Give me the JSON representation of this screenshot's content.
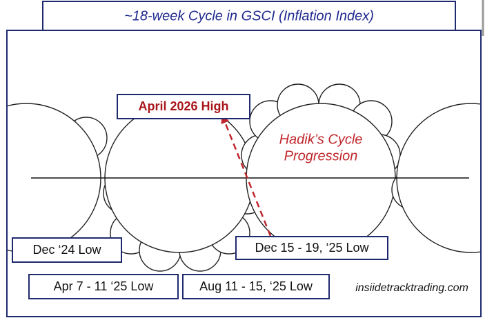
{
  "header": {
    "title": "~18-week Cycle in GSCI (Inflation Index)"
  },
  "annotations": {
    "high": "April 2026 High",
    "progression": [
      "Hadik’s Cycle",
      "Progression"
    ]
  },
  "labels": [
    "Dec ‘24 Low",
    "Dec 15 - 19, ‘25 Low",
    "Apr 7 - 11 ‘25 Low",
    "Aug 11 - 15, ‘25 Low"
  ],
  "watermark": "insiidetracktrading.com"
}
